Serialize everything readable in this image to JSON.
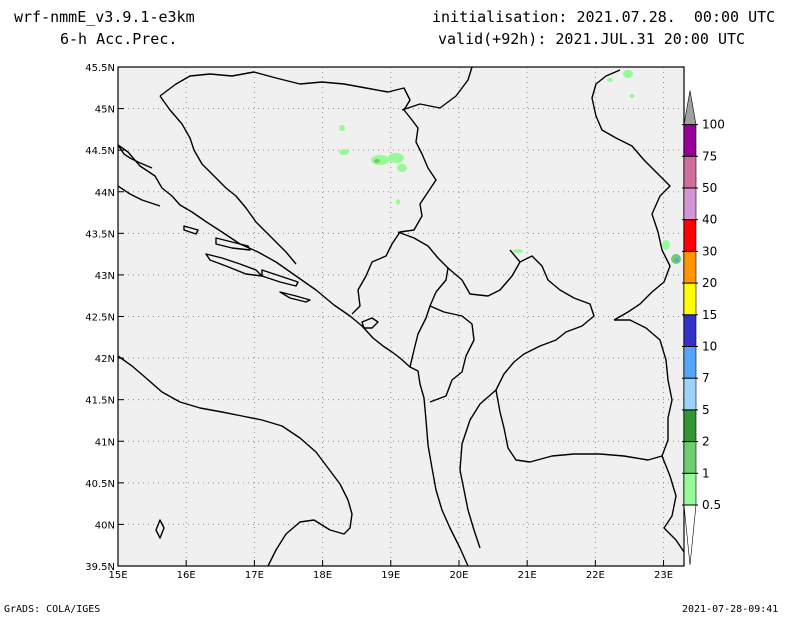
{
  "header": {
    "model": "wrf-nmmE_v3.9.1-e3km",
    "field": "6-h Acc.Prec.",
    "init": "initialisation: 2021.07.28.  00:00 UTC",
    "valid": "valid(+92h): 2021.JUL.31 20:00 UTC"
  },
  "map": {
    "x_ticks": [
      "15E",
      "16E",
      "17E",
      "18E",
      "19E",
      "20E",
      "21E",
      "22E",
      "23E"
    ],
    "y_ticks": [
      "45.5N",
      "45N",
      "44.5N",
      "44N",
      "43.5N",
      "43N",
      "42.5N",
      "42N",
      "41.5N",
      "41N",
      "40.5N",
      "40N",
      "39.5N"
    ],
    "lon_range": [
      15,
      23.3
    ],
    "lat_range": [
      39.5,
      45.5
    ],
    "background_color": "#f0f0f0"
  },
  "legend": {
    "levels": [
      "0.5",
      "1",
      "2",
      "5",
      "7",
      "10",
      "15",
      "20",
      "30",
      "40",
      "50",
      "75",
      "100"
    ],
    "colors": [
      "#96fa96",
      "#6ecd6e",
      "#329632",
      "#9bd2fa",
      "#55a5f5",
      "#3232c8",
      "#ffff00",
      "#ff9600",
      "#ff0000",
      "#d296d2",
      "#cd6e9b",
      "#960096",
      "#a0a0a0"
    ]
  },
  "footer": {
    "left": "GrADS: COLA/IGES",
    "right": "2021-07-28-09:41"
  }
}
